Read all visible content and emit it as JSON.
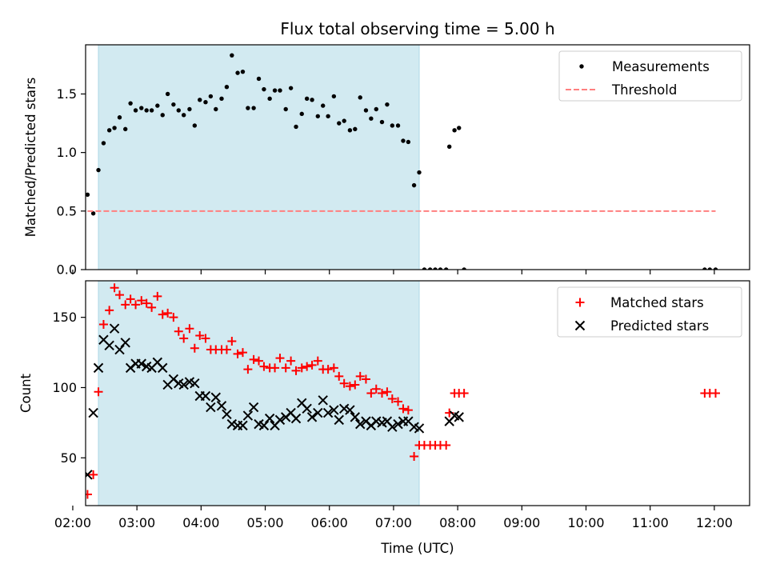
{
  "figure": {
    "title": "Flux total observing time = 5.00 h",
    "xlabel": "Time (UTC)"
  },
  "colors": {
    "shade": "#add8e6",
    "threshold": "#ff7f7f",
    "matched": "#ff0000",
    "predicted": "#000000",
    "measurement": "#000000"
  },
  "chart_data": [
    {
      "type": "scatter",
      "ylabel": "Matched/Predicted stars",
      "xlim": [
        2.2,
        12.55
      ],
      "ylim": [
        0,
        1.92
      ],
      "yticks": [
        0,
        0.5,
        1.0,
        1.5
      ],
      "ytick_labels": [
        "0.0",
        "0.5",
        "1.0",
        "1.5"
      ],
      "shaded_interval": [
        2.4,
        7.4
      ],
      "legend": {
        "position": "upper right",
        "entries": [
          "Measurements",
          "Threshold"
        ]
      },
      "series": [
        {
          "name": "Measurements",
          "marker": "dot",
          "x": [
            2.23,
            2.32,
            2.4,
            2.48,
            2.57,
            2.65,
            2.73,
            2.82,
            2.9,
            2.98,
            3.07,
            3.15,
            3.23,
            3.32,
            3.4,
            3.48,
            3.57,
            3.65,
            3.73,
            3.82,
            3.9,
            3.98,
            4.07,
            4.15,
            4.23,
            4.32,
            4.4,
            4.48,
            4.57,
            4.65,
            4.73,
            4.82,
            4.9,
            4.98,
            5.07,
            5.15,
            5.23,
            5.32,
            5.4,
            5.48,
            5.57,
            5.65,
            5.73,
            5.82,
            5.9,
            5.98,
            6.07,
            6.15,
            6.23,
            6.32,
            6.4,
            6.48,
            6.57,
            6.65,
            6.73,
            6.82,
            6.9,
            6.98,
            7.07,
            7.15,
            7.23,
            7.32,
            7.4,
            7.48,
            7.57,
            7.65,
            7.73,
            7.82,
            7.87,
            7.95,
            8.02,
            8.1,
            11.85,
            11.93,
            12.02
          ],
          "y": [
            0.64,
            0.48,
            0.85,
            1.08,
            1.19,
            1.21,
            1.3,
            1.2,
            1.42,
            1.36,
            1.38,
            1.36,
            1.36,
            1.4,
            1.32,
            1.5,
            1.41,
            1.36,
            1.32,
            1.37,
            1.23,
            1.45,
            1.43,
            1.48,
            1.37,
            1.46,
            1.56,
            1.83,
            1.68,
            1.69,
            1.38,
            1.38,
            1.63,
            1.54,
            1.46,
            1.53,
            1.53,
            1.37,
            1.55,
            1.22,
            1.33,
            1.46,
            1.45,
            1.31,
            1.4,
            1.31,
            1.48,
            1.25,
            1.27,
            1.19,
            1.2,
            1.47,
            1.36,
            1.29,
            1.37,
            1.26,
            1.41,
            1.23,
            1.23,
            1.1,
            1.09,
            0.72,
            0.83,
            0,
            0,
            0,
            0,
            0,
            1.05,
            1.19,
            1.21,
            0,
            0,
            0,
            0
          ]
        },
        {
          "name": "Threshold",
          "style": "dashed",
          "x": [
            2.23,
            12.02
          ],
          "y": [
            0.5,
            0.5
          ]
        }
      ]
    },
    {
      "type": "scatter",
      "ylabel": "Count",
      "xlim": [
        2.2,
        12.55
      ],
      "ylim": [
        16,
        176
      ],
      "yticks": [
        50,
        100,
        150
      ],
      "ytick_labels": [
        "50",
        "100",
        "150"
      ],
      "xticks": [
        2,
        3,
        4,
        5,
        6,
        7,
        8,
        9,
        10,
        11,
        12
      ],
      "xtick_labels": [
        "02:00",
        "03:00",
        "04:00",
        "05:00",
        "06:00",
        "07:00",
        "08:00",
        "09:00",
        "10:00",
        "11:00",
        "12:00"
      ],
      "shaded_interval": [
        2.4,
        7.4
      ],
      "legend": {
        "position": "upper right",
        "entries": [
          "Matched stars",
          "Predicted stars"
        ]
      },
      "series": [
        {
          "name": "Matched stars",
          "marker": "plus",
          "x": [
            2.23,
            2.32,
            2.4,
            2.48,
            2.57,
            2.65,
            2.73,
            2.82,
            2.9,
            2.98,
            3.07,
            3.15,
            3.23,
            3.32,
            3.4,
            3.48,
            3.57,
            3.65,
            3.73,
            3.82,
            3.9,
            3.98,
            4.07,
            4.15,
            4.23,
            4.32,
            4.4,
            4.48,
            4.57,
            4.65,
            4.73,
            4.82,
            4.9,
            4.98,
            5.07,
            5.15,
            5.23,
            5.32,
            5.4,
            5.48,
            5.57,
            5.65,
            5.73,
            5.82,
            5.9,
            5.98,
            6.07,
            6.15,
            6.23,
            6.32,
            6.4,
            6.48,
            6.57,
            6.65,
            6.73,
            6.82,
            6.9,
            6.98,
            7.07,
            7.15,
            7.23,
            7.32,
            7.4,
            7.48,
            7.57,
            7.65,
            7.73,
            7.82,
            7.87,
            7.95,
            8.02,
            8.1,
            11.85,
            11.93,
            12.02
          ],
          "y": [
            24,
            38,
            97,
            145,
            155,
            171,
            166,
            159,
            163,
            159,
            162,
            160,
            157,
            165,
            152,
            153,
            150,
            140,
            135,
            142,
            128,
            137,
            135,
            127,
            127,
            127,
            127,
            133,
            124,
            125,
            113,
            120,
            119,
            115,
            114,
            114,
            121,
            114,
            119,
            112,
            114,
            115,
            116,
            119,
            113,
            113,
            114,
            108,
            103,
            101,
            102,
            108,
            106,
            96,
            99,
            96,
            97,
            92,
            90,
            85,
            84,
            51,
            59,
            59,
            59,
            59,
            59,
            59,
            82,
            96,
            96,
            96,
            96,
            96,
            96
          ]
        },
        {
          "name": "Predicted stars",
          "marker": "x",
          "x": [
            2.23,
            2.32,
            2.4,
            2.48,
            2.57,
            2.65,
            2.73,
            2.82,
            2.9,
            2.98,
            3.07,
            3.15,
            3.23,
            3.32,
            3.4,
            3.48,
            3.57,
            3.65,
            3.73,
            3.82,
            3.9,
            3.98,
            4.07,
            4.15,
            4.23,
            4.32,
            4.4,
            4.48,
            4.57,
            4.65,
            4.73,
            4.82,
            4.9,
            4.98,
            5.07,
            5.15,
            5.23,
            5.32,
            5.4,
            5.48,
            5.57,
            5.65,
            5.73,
            5.82,
            5.9,
            5.98,
            6.07,
            6.15,
            6.23,
            6.32,
            6.4,
            6.48,
            6.57,
            6.65,
            6.73,
            6.82,
            6.9,
            6.98,
            7.07,
            7.15,
            7.23,
            7.32,
            7.4,
            7.87,
            7.95,
            8.02
          ],
          "y": [
            38,
            82,
            114,
            134,
            130,
            142,
            127,
            132,
            114,
            117,
            117,
            115,
            114,
            118,
            114,
            102,
            106,
            103,
            102,
            104,
            103,
            94,
            94,
            86,
            93,
            87,
            81,
            74,
            73,
            73,
            80,
            86,
            74,
            73,
            78,
            73,
            77,
            79,
            82,
            78,
            89,
            85,
            79,
            82,
            91,
            82,
            84,
            77,
            85,
            84,
            79,
            74,
            76,
            73,
            76,
            75,
            76,
            72,
            74,
            76,
            76,
            72,
            71,
            76,
            80,
            79
          ]
        }
      ]
    }
  ]
}
